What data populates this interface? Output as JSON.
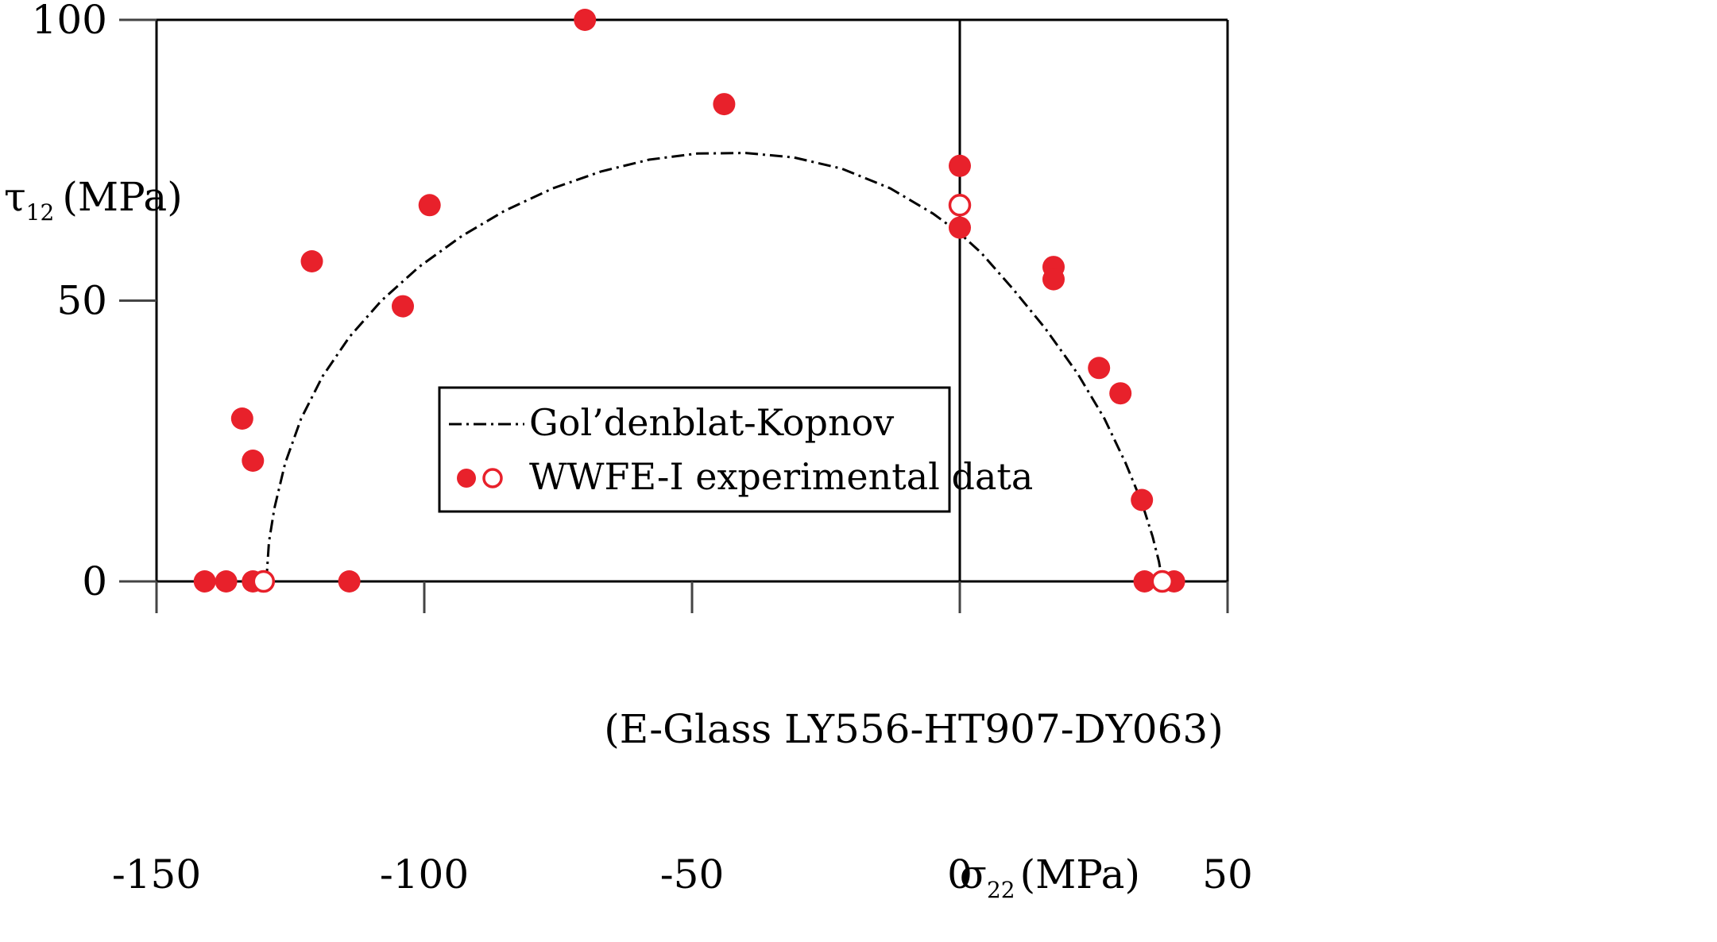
{
  "chart_data": {
    "type": "scatter",
    "subtitle": "(E-Glass LY556-HT907-DY063)",
    "xlabel": {
      "symbol": "σ",
      "sub": "22",
      "unit": "(MPa)"
    },
    "ylabel": {
      "symbol": "τ",
      "sub": "12",
      "unit": "(MPa)"
    },
    "xlim": [
      -150,
      50
    ],
    "ylim": [
      0,
      100
    ],
    "x_ticks": [
      -150,
      -100,
      -50,
      0,
      50
    ],
    "y_ticks": [
      0,
      50,
      100
    ],
    "grid": false,
    "legend_position": "center",
    "colors": {
      "data": "#e8212b",
      "curve": "#000000",
      "axes": "#000000"
    },
    "series": [
      {
        "name": "Gol'denblat-Kopnov",
        "kind": "line",
        "style": "dash-dot",
        "x": [
          -129.5,
          -129,
          -128,
          -126,
          -123,
          -119,
          -114,
          -108,
          -101,
          -93,
          -85,
          -76,
          -67,
          -58,
          -49,
          -40,
          -31,
          -22,
          -13,
          -5,
          0,
          4,
          10,
          16,
          22,
          27,
          31,
          34,
          36,
          37.2,
          37.8
        ],
        "y": [
          0,
          7,
          13,
          21,
          29,
          36.5,
          43.5,
          50,
          56,
          61.5,
          66,
          70,
          73,
          75.1,
          76.2,
          76.3,
          75.5,
          73.5,
          70,
          65.5,
          62,
          58.5,
          52,
          45,
          37,
          29,
          21,
          14,
          8,
          3.5,
          0
        ]
      },
      {
        "name": "WWFE-I experimental data",
        "kind": "scatter",
        "marker": "filled",
        "x": [
          -70,
          -44,
          0,
          0,
          -99,
          -121,
          -104,
          -134,
          -132,
          17.5,
          17.5,
          26,
          30,
          34,
          -141,
          -137,
          -132,
          -114,
          34.5,
          40
        ],
        "y": [
          100,
          85,
          74,
          63,
          67,
          57,
          49,
          29,
          21.5,
          56,
          53.8,
          38,
          33.5,
          14.5,
          0,
          0,
          0,
          0,
          0,
          0
        ]
      },
      {
        "name": "WWFE-I experimental data (open)",
        "kind": "scatter",
        "marker": "open",
        "x": [
          0,
          -130,
          37.8
        ],
        "y": [
          67,
          0,
          0
        ]
      }
    ],
    "legend": [
      {
        "label": "Gol’denblat-Kopnov",
        "symbol": "dash-dot-line"
      },
      {
        "label": "WWFE-I experimental data",
        "symbol": "filled-and-open-circle"
      }
    ]
  }
}
